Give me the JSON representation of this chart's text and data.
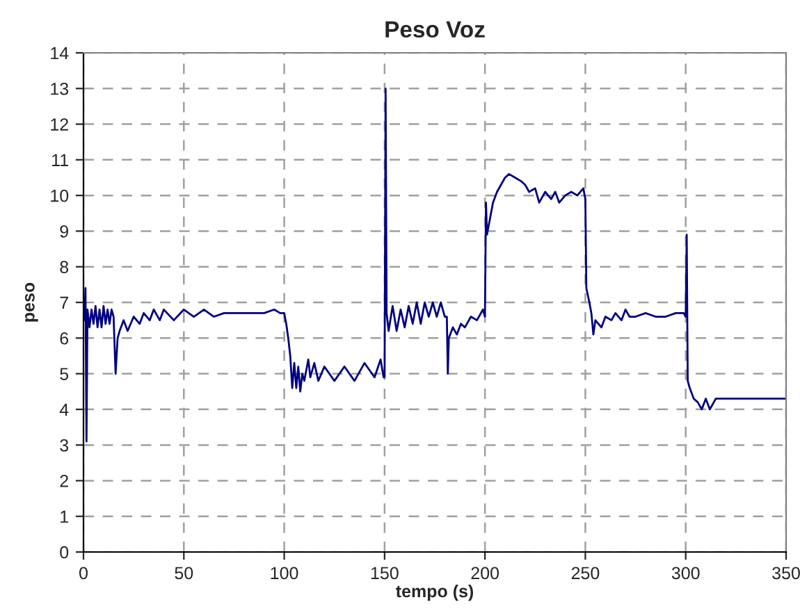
{
  "chart_data": {
    "type": "line",
    "title": "Peso Voz",
    "xlabel": "tempo (s)",
    "ylabel": "peso",
    "xlim": [
      0,
      350
    ],
    "xticks": [
      0,
      50,
      100,
      150,
      200,
      250,
      300,
      350
    ],
    "ylim": [
      0,
      14
    ],
    "yticks": [
      0,
      1,
      2,
      3,
      4,
      5,
      6,
      7,
      8,
      9,
      10,
      11,
      12,
      13,
      14
    ],
    "grid": true,
    "line_style": "solid",
    "marker": "none",
    "series": [
      {
        "color": "#000080",
        "x": [
          0.5,
          1,
          1.5,
          2,
          3,
          4,
          5,
          6,
          7,
          8,
          9,
          10,
          11,
          12,
          13,
          14,
          15,
          16,
          17,
          18,
          20,
          22,
          25,
          28,
          30,
          33,
          35,
          38,
          40,
          45,
          50,
          55,
          60,
          65,
          70,
          80,
          85,
          90,
          95,
          98,
          100,
          101,
          102,
          103,
          104,
          105,
          106,
          107,
          108,
          109,
          110,
          112,
          113,
          115,
          117,
          120,
          125,
          130,
          135,
          140,
          145,
          148,
          149.5,
          150,
          150.5,
          151,
          152,
          154,
          156,
          158,
          160,
          162,
          164,
          166,
          168,
          170,
          172,
          174,
          176,
          178,
          180,
          181,
          181.5,
          182,
          184,
          186,
          188,
          190,
          193,
          196,
          199,
          200,
          200.5,
          201,
          202,
          204,
          206,
          208,
          210,
          212,
          215,
          218,
          220,
          222,
          225,
          227,
          230,
          233,
          235,
          237,
          240,
          243,
          246,
          249,
          250,
          250.5,
          252,
          253,
          254,
          255,
          258,
          260,
          263,
          265,
          268,
          270,
          272,
          275,
          280,
          285,
          290,
          295,
          299,
          300,
          300.5,
          301,
          302,
          304,
          306,
          308,
          310,
          312,
          315,
          320,
          330,
          340,
          350
        ],
        "values": [
          6.5,
          7.4,
          3.1,
          6.8,
          6.3,
          6.8,
          6.4,
          6.9,
          6.3,
          6.8,
          6.3,
          6.9,
          6.4,
          6.8,
          6.4,
          6.8,
          6.6,
          5.0,
          6.0,
          6.2,
          6.5,
          6.2,
          6.6,
          6.4,
          6.7,
          6.5,
          6.8,
          6.5,
          6.8,
          6.5,
          6.8,
          6.6,
          6.8,
          6.6,
          6.7,
          6.7,
          6.7,
          6.7,
          6.8,
          6.7,
          6.7,
          6.4,
          6.0,
          5.5,
          4.6,
          5.3,
          4.6,
          5.2,
          4.5,
          5.0,
          4.8,
          5.4,
          4.9,
          5.3,
          4.8,
          5.2,
          4.8,
          5.2,
          4.8,
          5.3,
          4.9,
          5.4,
          4.9,
          4.9,
          13.0,
          6.7,
          6.2,
          6.9,
          6.2,
          6.8,
          6.3,
          6.9,
          6.4,
          7.0,
          6.4,
          7.0,
          6.6,
          7.0,
          6.6,
          7.0,
          6.6,
          6.6,
          5.0,
          6.0,
          6.3,
          6.1,
          6.4,
          6.3,
          6.6,
          6.5,
          6.8,
          6.6,
          9.8,
          8.9,
          9.2,
          9.8,
          10.1,
          10.3,
          10.5,
          10.6,
          10.5,
          10.4,
          10.3,
          10.1,
          10.2,
          9.8,
          10.1,
          9.9,
          10.1,
          9.8,
          10.0,
          10.1,
          10.0,
          10.2,
          9.9,
          7.4,
          7.0,
          6.7,
          6.1,
          6.5,
          6.3,
          6.6,
          6.5,
          6.7,
          6.5,
          6.8,
          6.6,
          6.6,
          6.7,
          6.6,
          6.6,
          6.7,
          6.7,
          6.6,
          8.9,
          4.8,
          4.6,
          4.3,
          4.2,
          4.0,
          4.3,
          4.0,
          4.3,
          4.3,
          4.3,
          4.3,
          4.3
        ]
      }
    ]
  }
}
